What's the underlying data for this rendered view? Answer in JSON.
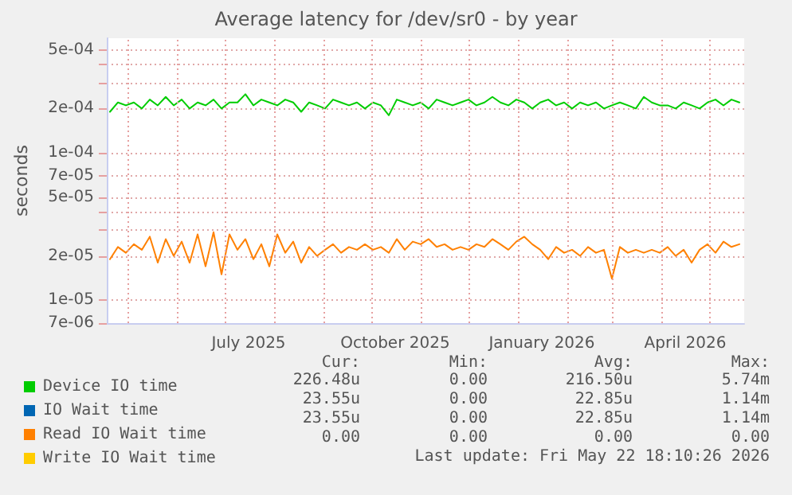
{
  "chart_data": {
    "type": "line",
    "title": "Average latency for /dev/sr0 - by year",
    "ylabel": "seconds",
    "log": "y",
    "x": [
      "2025-04-20",
      "2025-04-25",
      "2025-04-30",
      "2025-05-05",
      "2025-05-10",
      "2025-05-15",
      "2025-05-20",
      "2025-05-25",
      "2025-05-30",
      "2025-06-04",
      "2025-06-09",
      "2025-06-14",
      "2025-06-19",
      "2025-06-24",
      "2025-06-29",
      "2025-07-04",
      "2025-07-09",
      "2025-07-14",
      "2025-07-19",
      "2025-07-24",
      "2025-07-29",
      "2025-08-03",
      "2025-08-08",
      "2025-08-13",
      "2025-08-18",
      "2025-08-23",
      "2025-08-28",
      "2025-09-02",
      "2025-09-07",
      "2025-09-12",
      "2025-09-17",
      "2025-09-22",
      "2025-09-27",
      "2025-10-02",
      "2025-10-07",
      "2025-10-12",
      "2025-10-17",
      "2025-10-22",
      "2025-10-27",
      "2025-11-01",
      "2025-11-06",
      "2025-11-11",
      "2025-11-16",
      "2025-11-21",
      "2025-11-26",
      "2025-12-01",
      "2025-12-06",
      "2025-12-11",
      "2025-12-16",
      "2025-12-21",
      "2025-12-26",
      "2025-12-31",
      "2026-01-05",
      "2026-01-10",
      "2026-01-15",
      "2026-01-20",
      "2026-01-25",
      "2026-01-30",
      "2026-02-04",
      "2026-02-09",
      "2026-02-14",
      "2026-02-19",
      "2026-02-24",
      "2026-03-01",
      "2026-03-06",
      "2026-03-11",
      "2026-03-16",
      "2026-03-21",
      "2026-03-26",
      "2026-03-31",
      "2026-04-05",
      "2026-04-10",
      "2026-04-15",
      "2026-04-20",
      "2026-04-25",
      "2026-04-30",
      "2026-05-05",
      "2026-05-10",
      "2026-05-15",
      "2026-05-20"
    ],
    "series": [
      {
        "name": "Device IO time",
        "color": "#00cc00",
        "values": [
          0.00019,
          0.00022,
          0.00021,
          0.00022,
          0.0002,
          0.00023,
          0.00021,
          0.00024,
          0.00021,
          0.00023,
          0.0002,
          0.00022,
          0.00021,
          0.00023,
          0.0002,
          0.00022,
          0.00022,
          0.00025,
          0.00021,
          0.00023,
          0.00022,
          0.00021,
          0.00023,
          0.00022,
          0.00019,
          0.00022,
          0.00021,
          0.0002,
          0.00023,
          0.00022,
          0.00021,
          0.00022,
          0.0002,
          0.00022,
          0.00021,
          0.00018,
          0.00023,
          0.00022,
          0.00021,
          0.00022,
          0.0002,
          0.00023,
          0.00022,
          0.00021,
          0.00022,
          0.00023,
          0.00021,
          0.00022,
          0.00024,
          0.00022,
          0.00021,
          0.00023,
          0.00022,
          0.0002,
          0.00022,
          0.00023,
          0.00021,
          0.00022,
          0.0002,
          0.00022,
          0.00021,
          0.00022,
          0.0002,
          0.00021,
          0.00022,
          0.00021,
          0.0002,
          0.00024,
          0.00022,
          0.00021,
          0.00021,
          0.0002,
          0.00022,
          0.00021,
          0.0002,
          0.00022,
          0.00023,
          0.00021,
          0.00023,
          0.00022
        ]
      },
      {
        "name": "IO Wait time",
        "color": "#0066b3",
        "values": [
          null,
          null,
          null,
          null,
          null,
          null,
          null,
          null,
          null,
          null,
          null,
          null,
          null,
          null,
          null,
          null,
          null,
          null,
          null,
          null,
          null,
          null,
          null,
          null,
          null,
          null,
          null,
          null,
          null,
          null,
          null,
          null,
          null,
          null,
          null,
          null,
          null,
          null,
          null,
          null,
          null,
          null,
          null,
          null,
          null,
          null,
          null,
          null,
          null,
          null,
          null,
          null,
          null,
          null,
          null,
          null,
          null,
          null,
          null,
          null,
          null,
          null,
          null,
          null,
          null,
          null,
          null,
          null,
          null,
          null,
          null,
          null,
          null,
          null,
          null,
          null,
          null,
          null,
          null,
          null
        ]
      },
      {
        "name": "Read IO Wait time",
        "color": "#ff8000",
        "values": [
          1.9e-05,
          2.3e-05,
          2.1e-05,
          2.4e-05,
          2.2e-05,
          2.7e-05,
          1.8e-05,
          2.6e-05,
          2e-05,
          2.5e-05,
          1.8e-05,
          2.8e-05,
          1.7e-05,
          2.9e-05,
          1.5e-05,
          2.8e-05,
          2.2e-05,
          2.6e-05,
          1.9e-05,
          2.4e-05,
          1.7e-05,
          2.8e-05,
          2.1e-05,
          2.5e-05,
          1.8e-05,
          2.3e-05,
          2e-05,
          2.2e-05,
          2.4e-05,
          2.1e-05,
          2.3e-05,
          2.2e-05,
          2.4e-05,
          2.2e-05,
          2.3e-05,
          2.1e-05,
          2.6e-05,
          2.2e-05,
          2.5e-05,
          2.4e-05,
          2.6e-05,
          2.3e-05,
          2.4e-05,
          2.2e-05,
          2.3e-05,
          2.2e-05,
          2.4e-05,
          2.3e-05,
          2.6e-05,
          2.4e-05,
          2.2e-05,
          2.5e-05,
          2.7e-05,
          2.4e-05,
          2.2e-05,
          1.9e-05,
          2.3e-05,
          2.1e-05,
          2.2e-05,
          2e-05,
          2.3e-05,
          2.1e-05,
          2.2e-05,
          1.4e-05,
          2.3e-05,
          2.1e-05,
          2.2e-05,
          2.1e-05,
          2.2e-05,
          2.1e-05,
          2.3e-05,
          2e-05,
          2.2e-05,
          1.8e-05,
          2.2e-05,
          2.4e-05,
          2.1e-05,
          2.5e-05,
          2.3e-05,
          2.4e-05
        ]
      },
      {
        "name": "Write IO Wait time",
        "color": "#ffcc00",
        "values": [
          null,
          null,
          null,
          null,
          null,
          null,
          null,
          null,
          null,
          null,
          null,
          null,
          null,
          null,
          null,
          null,
          null,
          null,
          null,
          null,
          null,
          null,
          null,
          null,
          null,
          null,
          null,
          null,
          null,
          null,
          null,
          null,
          null,
          null,
          null,
          null,
          null,
          null,
          null,
          null,
          null,
          null,
          null,
          null,
          null,
          null,
          null,
          null,
          null,
          null,
          null,
          null,
          null,
          null,
          null,
          null,
          null,
          null,
          null,
          null,
          null,
          null,
          null,
          null,
          null,
          null,
          null,
          null,
          null,
          null,
          null,
          null,
          null,
          null,
          null,
          null,
          null,
          null,
          null,
          null
        ]
      }
    ],
    "xlim": [
      "2025-04-18",
      "2026-05-23"
    ],
    "xticks": [
      {
        "value": "2025-05-01",
        "label": null
      },
      {
        "value": "2025-06-01",
        "label": null
      },
      {
        "value": "2025-07-01",
        "label": null
      },
      {
        "value": "2025-07-16",
        "label": "July 2025"
      },
      {
        "value": "2025-08-01",
        "label": null
      },
      {
        "value": "2025-09-01",
        "label": null
      },
      {
        "value": "2025-10-01",
        "label": null
      },
      {
        "value": "2025-10-16",
        "label": "October 2025"
      },
      {
        "value": "2025-11-01",
        "label": null
      },
      {
        "value": "2025-12-01",
        "label": null
      },
      {
        "value": "2026-01-01",
        "label": null
      },
      {
        "value": "2026-01-16",
        "label": "January 2026"
      },
      {
        "value": "2026-02-01",
        "label": null
      },
      {
        "value": "2026-03-01",
        "label": null
      },
      {
        "value": "2026-04-01",
        "label": null
      },
      {
        "value": "2026-04-16",
        "label": "April 2026"
      },
      {
        "value": "2026-05-01",
        "label": null
      }
    ],
    "ylim": [
      7e-06,
      0.0006
    ],
    "yticks": [
      {
        "value": 7e-06,
        "label": "7e-06"
      },
      {
        "value": 1e-05,
        "label": "1e-05"
      },
      {
        "value": 2e-05,
        "label": "2e-05"
      },
      {
        "value": 3e-05,
        "label": null
      },
      {
        "value": 4e-05,
        "label": null
      },
      {
        "value": 5e-05,
        "label": "5e-05"
      },
      {
        "value": 7e-05,
        "label": "7e-05"
      },
      {
        "value": 0.0001,
        "label": "1e-04"
      },
      {
        "value": 0.0002,
        "label": "2e-04"
      },
      {
        "value": 0.0003,
        "label": null
      },
      {
        "value": 0.0004,
        "label": null
      },
      {
        "value": 0.0005,
        "label": "5e-04"
      }
    ],
    "grid": true,
    "legend": "bottom",
    "marker": "none",
    "line_style": "solid",
    "annotations": [
      "Cur:",
      "Min:",
      "Avg:",
      "Max:",
      "226.48u",
      "0.00",
      "216.50u",
      "5.74m",
      "23.55u",
      "0.00",
      "22.85u",
      "1.14m",
      "23.55u",
      "0.00",
      "22.85u",
      "1.14m",
      "0.00",
      "0.00",
      "0.00",
      "0.00",
      "Last update: Fri May 22 18:10:26 2026"
    ]
  }
}
